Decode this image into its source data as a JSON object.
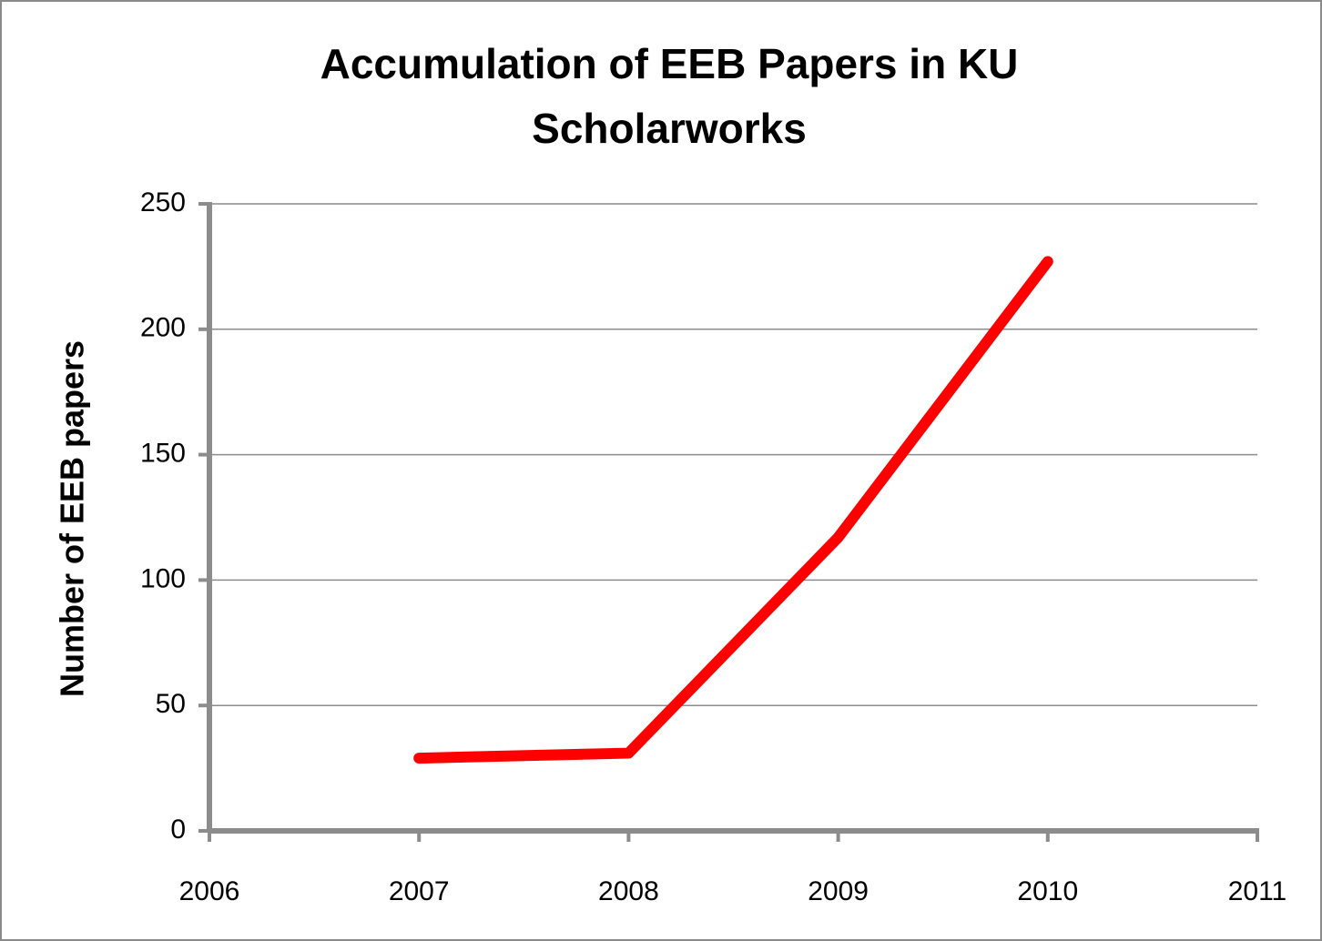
{
  "chart_data": {
    "type": "line",
    "title": [
      "Accumulation of EEB Papers in KU",
      "Scholarworks"
    ],
    "y_label": "Number of EEB papers",
    "x": [
      2007,
      2008,
      2009,
      2010
    ],
    "series": [
      {
        "color": "#ff0000",
        "values": [
          29,
          31,
          117,
          227
        ]
      }
    ],
    "xlim": [
      2006,
      2011
    ],
    "xticks": [
      2006,
      2007,
      2008,
      2009,
      2010,
      2011
    ],
    "ylim": [
      0,
      250
    ],
    "yticks": [
      0,
      50,
      100,
      150,
      200,
      250
    ],
    "grid": true
  }
}
